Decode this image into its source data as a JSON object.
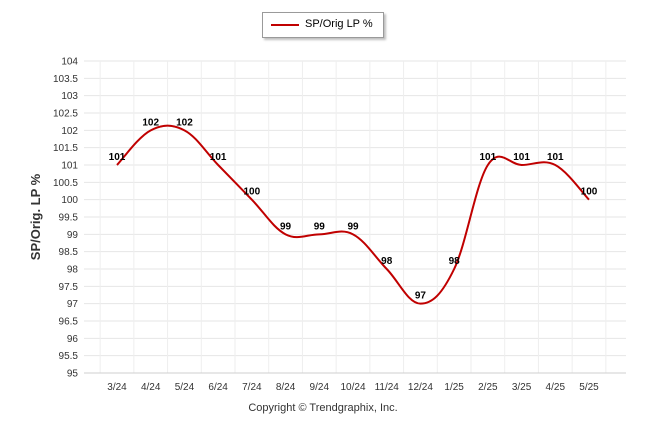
{
  "chart_data": {
    "type": "line",
    "title": "",
    "xlabel": "",
    "ylabel": "SP/Orig. LP %",
    "ylim": [
      95,
      104
    ],
    "ytick_step": 0.5,
    "yticks": [
      "95",
      "95.5",
      "96",
      "96.5",
      "97",
      "97.5",
      "98",
      "98.5",
      "99",
      "99.5",
      "100",
      "100.5",
      "101",
      "101.5",
      "102",
      "102.5",
      "103",
      "103.5",
      "104"
    ],
    "grid": true,
    "legend": "top-center",
    "categories": [
      "3/24",
      "4/24",
      "5/24",
      "6/24",
      "7/24",
      "8/24",
      "9/24",
      "10/24",
      "11/24",
      "12/24",
      "1/25",
      "2/25",
      "3/25",
      "4/25",
      "5/25"
    ],
    "series": [
      {
        "name": "SP/Orig LP %",
        "color": "#c00000",
        "values": [
          101,
          102,
          102,
          101,
          100,
          99,
          99,
          99,
          98,
          97,
          98,
          101,
          101,
          101,
          100
        ],
        "labels": [
          "101",
          "102",
          "102",
          "101",
          "100",
          "99",
          "99",
          "99",
          "98",
          "97",
          "98",
          "101",
          "101",
          "101",
          "100"
        ]
      }
    ]
  },
  "legend": {
    "label": "SP/Orig LP %"
  },
  "footer": {
    "copyright": "Copyright © Trendgraphix, Inc."
  }
}
